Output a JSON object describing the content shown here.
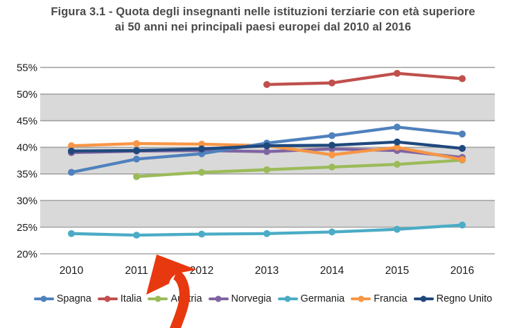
{
  "figure": {
    "title_line1": "Figura 3.1 - Quota degli insegnanti nelle istituzioni terziarie con età superiore",
    "title_line2": "ai 50 anni nei principali paesi europei dal 2010 al 2016"
  },
  "chart_data": {
    "type": "line",
    "title": "Figura 3.1 - Quota degli insegnanti nelle istituzioni terziarie con età superiore ai 50 anni nei principali paesi europei dal 2010 al 2016",
    "categories": [
      "2010",
      "2011",
      "2012",
      "2013",
      "2014",
      "2015",
      "2016"
    ],
    "y_ticks": [
      "20%",
      "25%",
      "30%",
      "35%",
      "40%",
      "45%",
      "50%",
      "55%"
    ],
    "ylim": [
      20,
      55
    ],
    "y_step": 5,
    "grid": true,
    "legend_position": "bottom",
    "series": [
      {
        "name": "Spagna",
        "color": "#4f81bd",
        "values": [
          35.3,
          37.8,
          38.8,
          40.8,
          42.2,
          43.8,
          42.5
        ]
      },
      {
        "name": "Italia",
        "color": "#c0504d",
        "values": [
          null,
          null,
          null,
          51.8,
          52.1,
          53.9,
          52.9
        ]
      },
      {
        "name": "Austria",
        "color": "#9bbb59",
        "values": [
          null,
          34.5,
          35.3,
          35.8,
          36.3,
          36.8,
          37.6
        ]
      },
      {
        "name": "Norvegia",
        "color": "#8064a2",
        "values": [
          39.0,
          39.3,
          39.4,
          39.2,
          39.7,
          39.4,
          38.1
        ]
      },
      {
        "name": "Germania",
        "color": "#4bacc6",
        "values": [
          23.8,
          23.5,
          23.7,
          23.8,
          24.1,
          24.6,
          25.4
        ]
      },
      {
        "name": "Francia",
        "color": "#f79646",
        "values": [
          40.3,
          40.7,
          40.6,
          40.3,
          38.6,
          40.0,
          37.7
        ]
      },
      {
        "name": "Regno Unito",
        "color": "#1f497d",
        "values": [
          39.3,
          39.4,
          39.7,
          40.3,
          40.4,
          41.0,
          39.8
        ]
      }
    ],
    "band_fill": "#d9d9d9",
    "grid_color": "#a3a3a3",
    "tick_text_color": "#1a1a1a"
  },
  "annotation": {
    "type": "arrow",
    "color": "#e8380f"
  }
}
